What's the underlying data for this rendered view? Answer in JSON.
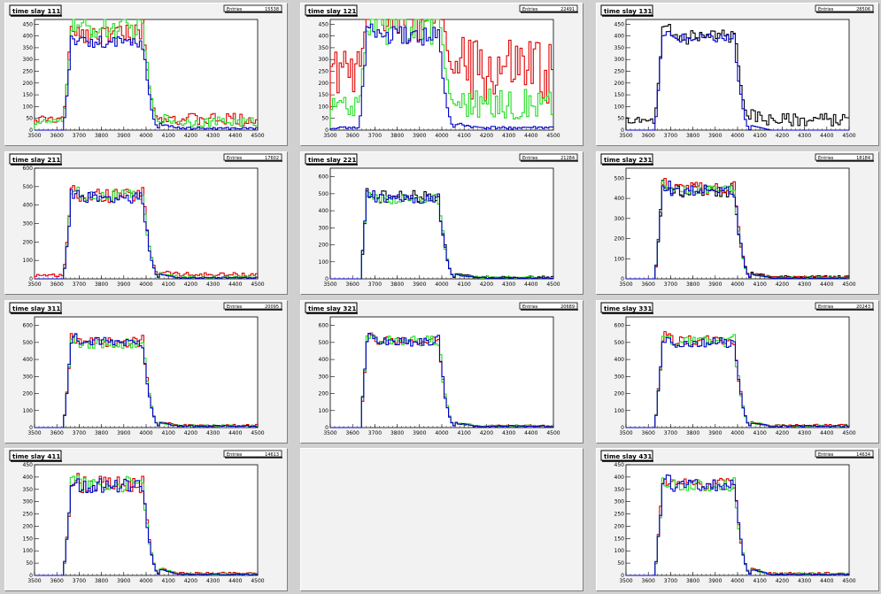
{
  "canvas": {
    "background": "#d0d0d0",
    "pad_background": "#f2f2f2"
  },
  "colors": {
    "red": "#e00000",
    "green": "#22dd22",
    "blue": "#0000c8",
    "black": "#000000"
  },
  "stats_label": "Entries",
  "chart_data": [
    {
      "type": "line",
      "title": "time slay 111",
      "entries": "15538",
      "xlim": [
        3500,
        4500
      ],
      "ylim": [
        0,
        470
      ],
      "xticks": [
        "3500",
        "3600",
        "3700",
        "3800",
        "3900",
        "4000",
        "4100",
        "4200",
        "4300",
        "4400",
        "4500"
      ],
      "yticks": [
        "0",
        "50",
        "100",
        "150",
        "200",
        "250",
        "300",
        "350",
        "400",
        "450"
      ],
      "series": [
        {
          "color": "red",
          "profile": "a",
          "plateau": 410,
          "tail": 45,
          "pre": 45,
          "noise": 0.1
        },
        {
          "color": "green",
          "profile": "a",
          "plateau": 430,
          "tail": 35,
          "pre": 35,
          "noise": 0.1
        },
        {
          "color": "blue",
          "profile": "a",
          "plateau": 370,
          "tail": 8,
          "pre": 0,
          "noise": 0.08
        }
      ]
    },
    {
      "type": "line",
      "title": "time slay 121",
      "entries": "22491",
      "xlim": [
        3500,
        4500
      ],
      "ylim": [
        0,
        470
      ],
      "xticks": [
        "3500",
        "3600",
        "3700",
        "3800",
        "3900",
        "4000",
        "4100",
        "4200",
        "4300",
        "4400",
        "4500"
      ],
      "yticks": [
        "0",
        "50",
        "100",
        "150",
        "200",
        "250",
        "300",
        "350",
        "400",
        "450"
      ],
      "series": [
        {
          "color": "red",
          "profile": "a",
          "plateau": 470,
          "tail": 240,
          "pre": 240,
          "noise": 0.22
        },
        {
          "color": "green",
          "profile": "a",
          "plateau": 450,
          "tail": 110,
          "pre": 100,
          "noise": 0.2
        },
        {
          "color": "blue",
          "profile": "a",
          "plateau": 400,
          "tail": 10,
          "pre": 10,
          "noise": 0.1
        }
      ]
    },
    {
      "type": "line",
      "title": "time slay 131",
      "entries": "28506",
      "xlim": [
        3500,
        4500
      ],
      "ylim": [
        0,
        470
      ],
      "xticks": [
        "3500",
        "3600",
        "3700",
        "3800",
        "3900",
        "4000",
        "4100",
        "4200",
        "4300",
        "4400",
        "4500"
      ],
      "yticks": [
        "0",
        "50",
        "100",
        "150",
        "200",
        "250",
        "300",
        "350",
        "400",
        "450"
      ],
      "series": [
        {
          "color": "black",
          "profile": "a",
          "plateau": 400,
          "tail": 45,
          "pre": 40,
          "noise": 0.1
        },
        {
          "color": "blue",
          "profile": "a",
          "plateau": 390,
          "tail": 0,
          "pre": 0,
          "noise": 0.05
        }
      ]
    },
    {
      "type": "line",
      "title": "time slay 211",
      "entries": "17602",
      "xlim": [
        3500,
        4500
      ],
      "ylim": [
        0,
        600
      ],
      "xticks": [
        "3500",
        "3600",
        "3700",
        "3800",
        "3900",
        "4000",
        "4100",
        "4200",
        "4300",
        "4400",
        "4500"
      ],
      "yticks": [
        "0",
        "100",
        "200",
        "300",
        "400",
        "500",
        "600"
      ],
      "series": [
        {
          "color": "red",
          "profile": "a",
          "plateau": 450,
          "tail": 22,
          "pre": 20,
          "noise": 0.08
        },
        {
          "color": "green",
          "profile": "a",
          "plateau": 450,
          "tail": 10,
          "pre": 0,
          "noise": 0.07
        },
        {
          "color": "blue",
          "profile": "a",
          "plateau": 440,
          "tail": 6,
          "pre": 0,
          "noise": 0.07
        }
      ]
    },
    {
      "type": "line",
      "title": "time slay 221",
      "entries": "21284",
      "xlim": [
        3500,
        4500
      ],
      "ylim": [
        0,
        650
      ],
      "xticks": [
        "3500",
        "3600",
        "3700",
        "3800",
        "3900",
        "4000",
        "4100",
        "4200",
        "4300",
        "4400",
        "4500"
      ],
      "yticks": [
        "0",
        "100",
        "200",
        "300",
        "400",
        "500",
        "600"
      ],
      "series": [
        {
          "color": "black",
          "profile": "b",
          "plateau": 480,
          "tail": 10,
          "pre": 0,
          "noise": 0.08
        },
        {
          "color": "green",
          "profile": "b",
          "plateau": 470,
          "tail": 8,
          "pre": 0,
          "noise": 0.06
        },
        {
          "color": "blue",
          "profile": "b",
          "plateau": 470,
          "tail": 6,
          "pre": 0,
          "noise": 0.06
        }
      ]
    },
    {
      "type": "line",
      "title": "time slay 231",
      "entries": "18184",
      "xlim": [
        3500,
        4500
      ],
      "ylim": [
        0,
        550
      ],
      "xticks": [
        "3500",
        "3600",
        "3700",
        "3800",
        "3900",
        "4000",
        "4100",
        "4200",
        "4300",
        "4400",
        "4500"
      ],
      "yticks": [
        "0",
        "100",
        "200",
        "300",
        "400",
        "500"
      ],
      "series": [
        {
          "color": "black",
          "profile": "a",
          "plateau": 440,
          "tail": 10,
          "pre": 0,
          "noise": 0.08
        },
        {
          "color": "red",
          "profile": "a",
          "plateau": 450,
          "tail": 8,
          "pre": 0,
          "noise": 0.07
        },
        {
          "color": "green",
          "profile": "a",
          "plateau": 440,
          "tail": 6,
          "pre": 0,
          "noise": 0.06
        },
        {
          "color": "blue",
          "profile": "a",
          "plateau": 440,
          "tail": 4,
          "pre": 0,
          "noise": 0.06
        }
      ]
    },
    {
      "type": "line",
      "title": "time slay 311",
      "entries": "20095",
      "xlim": [
        3500,
        4500
      ],
      "ylim": [
        0,
        650
      ],
      "xticks": [
        "3500",
        "3600",
        "3700",
        "3800",
        "3900",
        "4000",
        "4100",
        "4200",
        "4300",
        "4400",
        "4500"
      ],
      "yticks": [
        "0",
        "100",
        "200",
        "300",
        "400",
        "500",
        "600"
      ],
      "series": [
        {
          "color": "red",
          "profile": "a",
          "plateau": 500,
          "tail": 12,
          "pre": 0,
          "noise": 0.06
        },
        {
          "color": "green",
          "profile": "a",
          "plateau": 495,
          "tail": 10,
          "pre": 0,
          "noise": 0.06
        },
        {
          "color": "blue",
          "profile": "a",
          "plateau": 500,
          "tail": 8,
          "pre": 0,
          "noise": 0.06
        }
      ]
    },
    {
      "type": "line",
      "title": "time slay 321",
      "entries": "20689",
      "xlim": [
        3500,
        4500
      ],
      "ylim": [
        0,
        650
      ],
      "xticks": [
        "3500",
        "3600",
        "3700",
        "3800",
        "3900",
        "4000",
        "4100",
        "4200",
        "4300",
        "4400",
        "4500"
      ],
      "yticks": [
        "0",
        "100",
        "200",
        "300",
        "400",
        "500",
        "600"
      ],
      "series": [
        {
          "color": "red",
          "profile": "b",
          "plateau": 510,
          "tail": 10,
          "pre": 0,
          "noise": 0.06
        },
        {
          "color": "green",
          "profile": "b",
          "plateau": 510,
          "tail": 10,
          "pre": 0,
          "noise": 0.06
        },
        {
          "color": "blue",
          "profile": "b",
          "plateau": 505,
          "tail": 8,
          "pre": 0,
          "noise": 0.06
        }
      ]
    },
    {
      "type": "line",
      "title": "time slay 331",
      "entries": "20243",
      "xlim": [
        3500,
        4500
      ],
      "ylim": [
        0,
        650
      ],
      "xticks": [
        "3500",
        "3600",
        "3700",
        "3800",
        "3900",
        "4000",
        "4100",
        "4200",
        "4300",
        "4400",
        "4500"
      ],
      "yticks": [
        "0",
        "100",
        "200",
        "300",
        "400",
        "500",
        "600"
      ],
      "series": [
        {
          "color": "red",
          "profile": "a",
          "plateau": 510,
          "tail": 12,
          "pre": 0,
          "noise": 0.06
        },
        {
          "color": "green",
          "profile": "a",
          "plateau": 505,
          "tail": 10,
          "pre": 0,
          "noise": 0.06
        },
        {
          "color": "blue",
          "profile": "a",
          "plateau": 500,
          "tail": 8,
          "pre": 0,
          "noise": 0.06
        }
      ]
    },
    {
      "type": "line",
      "title": "time slay 411",
      "entries": "14613",
      "xlim": [
        3500,
        4500
      ],
      "ylim": [
        0,
        450
      ],
      "xticks": [
        "3500",
        "3600",
        "3700",
        "3800",
        "3900",
        "4000",
        "4100",
        "4200",
        "4300",
        "4400",
        "4500"
      ],
      "yticks": [
        "0",
        "50",
        "100",
        "150",
        "200",
        "250",
        "300",
        "350",
        "400",
        "450"
      ],
      "series": [
        {
          "color": "red",
          "profile": "a",
          "plateau": 370,
          "tail": 8,
          "pre": 0,
          "noise": 0.09
        },
        {
          "color": "green",
          "profile": "a",
          "plateau": 370,
          "tail": 6,
          "pre": 0,
          "noise": 0.09
        },
        {
          "color": "blue",
          "profile": "a",
          "plateau": 365,
          "tail": 4,
          "pre": 0,
          "noise": 0.08
        }
      ]
    },
    null,
    {
      "type": "line",
      "title": "time slay 431",
      "entries": "14634",
      "xlim": [
        3500,
        4500
      ],
      "ylim": [
        0,
        450
      ],
      "xticks": [
        "3500",
        "3600",
        "3700",
        "3800",
        "3900",
        "4000",
        "4100",
        "4200",
        "4300",
        "4400",
        "4500"
      ],
      "yticks": [
        "0",
        "50",
        "100",
        "150",
        "200",
        "250",
        "300",
        "350",
        "400",
        "450"
      ],
      "series": [
        {
          "color": "red",
          "profile": "a",
          "plateau": 370,
          "tail": 8,
          "pre": 0,
          "noise": 0.07
        },
        {
          "color": "green",
          "profile": "a",
          "plateau": 365,
          "tail": 6,
          "pre": 0,
          "noise": 0.07
        },
        {
          "color": "blue",
          "profile": "a",
          "plateau": 365,
          "tail": 4,
          "pre": 0,
          "noise": 0.07
        }
      ]
    }
  ]
}
